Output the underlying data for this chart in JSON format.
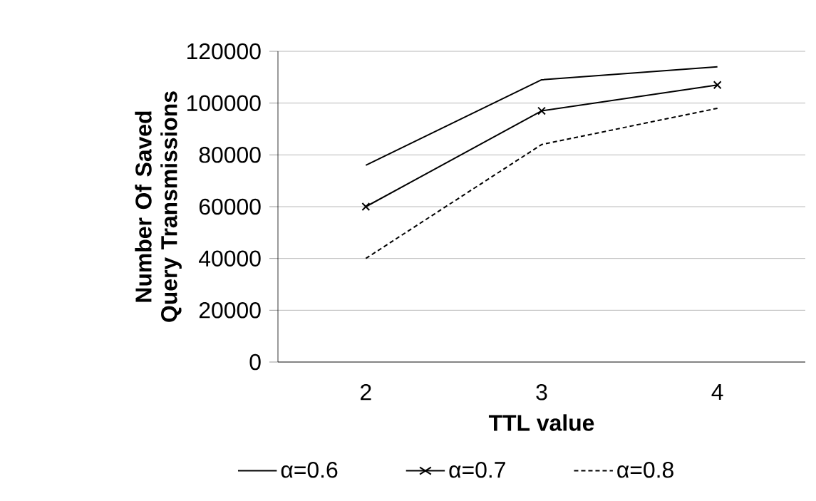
{
  "chart_data": {
    "type": "line",
    "xlabel": "TTL value",
    "ylabel": "Number Of Saved Query Transmissions",
    "categories": [
      "2",
      "3",
      "4"
    ],
    "series": [
      {
        "name": "α=0.6",
        "color": "#000000",
        "line_style": "solid",
        "marker": "none",
        "values": [
          76000,
          109000,
          114000
        ]
      },
      {
        "name": "α=0.7",
        "color": "#000000",
        "line_style": "solid",
        "marker": "cross",
        "values": [
          60000,
          97000,
          107000
        ]
      },
      {
        "name": "α=0.8",
        "color": "#000000",
        "line_style": "dashed",
        "marker": "none",
        "values": [
          40000,
          84000,
          98000
        ]
      }
    ],
    "ylim": [
      0,
      120000
    ],
    "yticks": [
      0,
      20000,
      40000,
      60000,
      80000,
      100000,
      120000
    ],
    "grid": "y",
    "legend": "bottom"
  }
}
